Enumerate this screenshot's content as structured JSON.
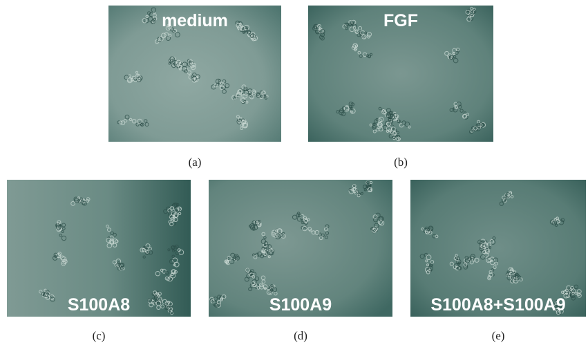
{
  "panels": [
    {
      "label": "medium",
      "caption": "(a)"
    },
    {
      "label": "FGF",
      "caption": "(b)"
    },
    {
      "label": "S100A8",
      "caption": "(c)"
    },
    {
      "label": "S100A9",
      "caption": "(d)"
    },
    {
      "label": "S100A8+S100A9",
      "caption": "(e)"
    }
  ]
}
